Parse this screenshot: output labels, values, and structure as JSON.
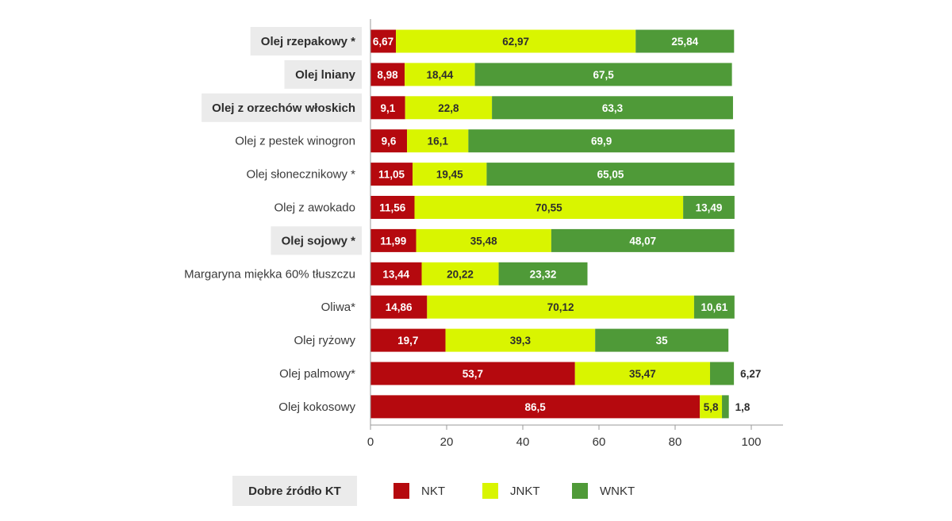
{
  "chart_data": {
    "type": "bar",
    "orientation": "horizontal",
    "stacked": true,
    "categories": [
      "Olej rzepakowy *",
      "Olej lniany",
      "Olej z orzechów włoskich",
      "Olej z pestek winogron",
      "Olej słonecznikowy *",
      "Olej z awokado",
      "Olej sojowy *",
      "Margaryna miękka 60% tłuszczu",
      "Oliwa*",
      "Olej ryżowy",
      "Olej palmowy*",
      "Olej kokosowy"
    ],
    "highlighted": [
      true,
      true,
      true,
      false,
      false,
      false,
      true,
      false,
      false,
      false,
      false,
      false
    ],
    "series": [
      {
        "name": "NKT",
        "color": "#b5090e",
        "values": [
          6.67,
          8.98,
          9.1,
          9.6,
          11.05,
          11.56,
          11.99,
          13.44,
          14.86,
          19.7,
          53.7,
          86.5
        ],
        "labels": [
          "6,67",
          "8,98",
          "9,1",
          "9,6",
          "11,05",
          "11,56",
          "11,99",
          "13,44",
          "14,86",
          "19,7",
          "53,7",
          "86,5"
        ]
      },
      {
        "name": "JNKT",
        "color": "#d9f500",
        "values": [
          62.97,
          18.44,
          22.8,
          16.1,
          19.45,
          70.55,
          35.48,
          20.22,
          70.12,
          39.3,
          35.47,
          5.8
        ],
        "labels": [
          "62,97",
          "18,44",
          "22,8",
          "16,1",
          "19,45",
          "70,55",
          "35,48",
          "20,22",
          "70,12",
          "39,3",
          "35,47",
          "5,8"
        ]
      },
      {
        "name": "WNKT",
        "color": "#4f9a38",
        "values": [
          25.84,
          67.5,
          63.3,
          69.9,
          65.05,
          13.49,
          48.07,
          23.32,
          10.61,
          35,
          6.27,
          1.8
        ],
        "labels": [
          "25,84",
          "67,5",
          "63,3",
          "69,9",
          "65,05",
          "13,49",
          "48,07",
          "23,32",
          "10,61",
          "35",
          "6,27",
          "1,8"
        ]
      }
    ],
    "xlim": [
      0,
      110
    ],
    "xticks": [
      0,
      20,
      40,
      60,
      80,
      100
    ],
    "legend": {
      "position": "bottom",
      "highlight_label": "Dobre źródło KT",
      "items": [
        "NKT",
        "JNKT",
        "WNKT"
      ]
    }
  }
}
